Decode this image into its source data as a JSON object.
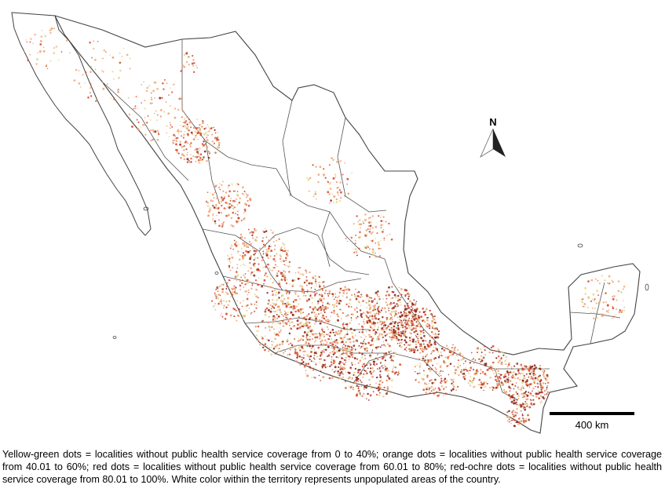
{
  "map": {
    "north_label": "N",
    "scale_label": "400 km",
    "colors": {
      "yellow_green": "#dcd890",
      "orange": "#f0a070",
      "red": "#d64a2a",
      "red_ochre": "#8a1f12",
      "border": "#444444"
    }
  },
  "caption": {
    "text": "Yellow-green dots = localities without public health service coverage from 0 to 40%; orange dots = localities without public health service coverage from 40.01 to 60%; red dots = localities without public health service coverage from 60.01 to 80%; red-ochre dots = localities without public health service coverage from 80.01 to 100%. White color within the territory represents unpopulated areas of the country."
  }
}
